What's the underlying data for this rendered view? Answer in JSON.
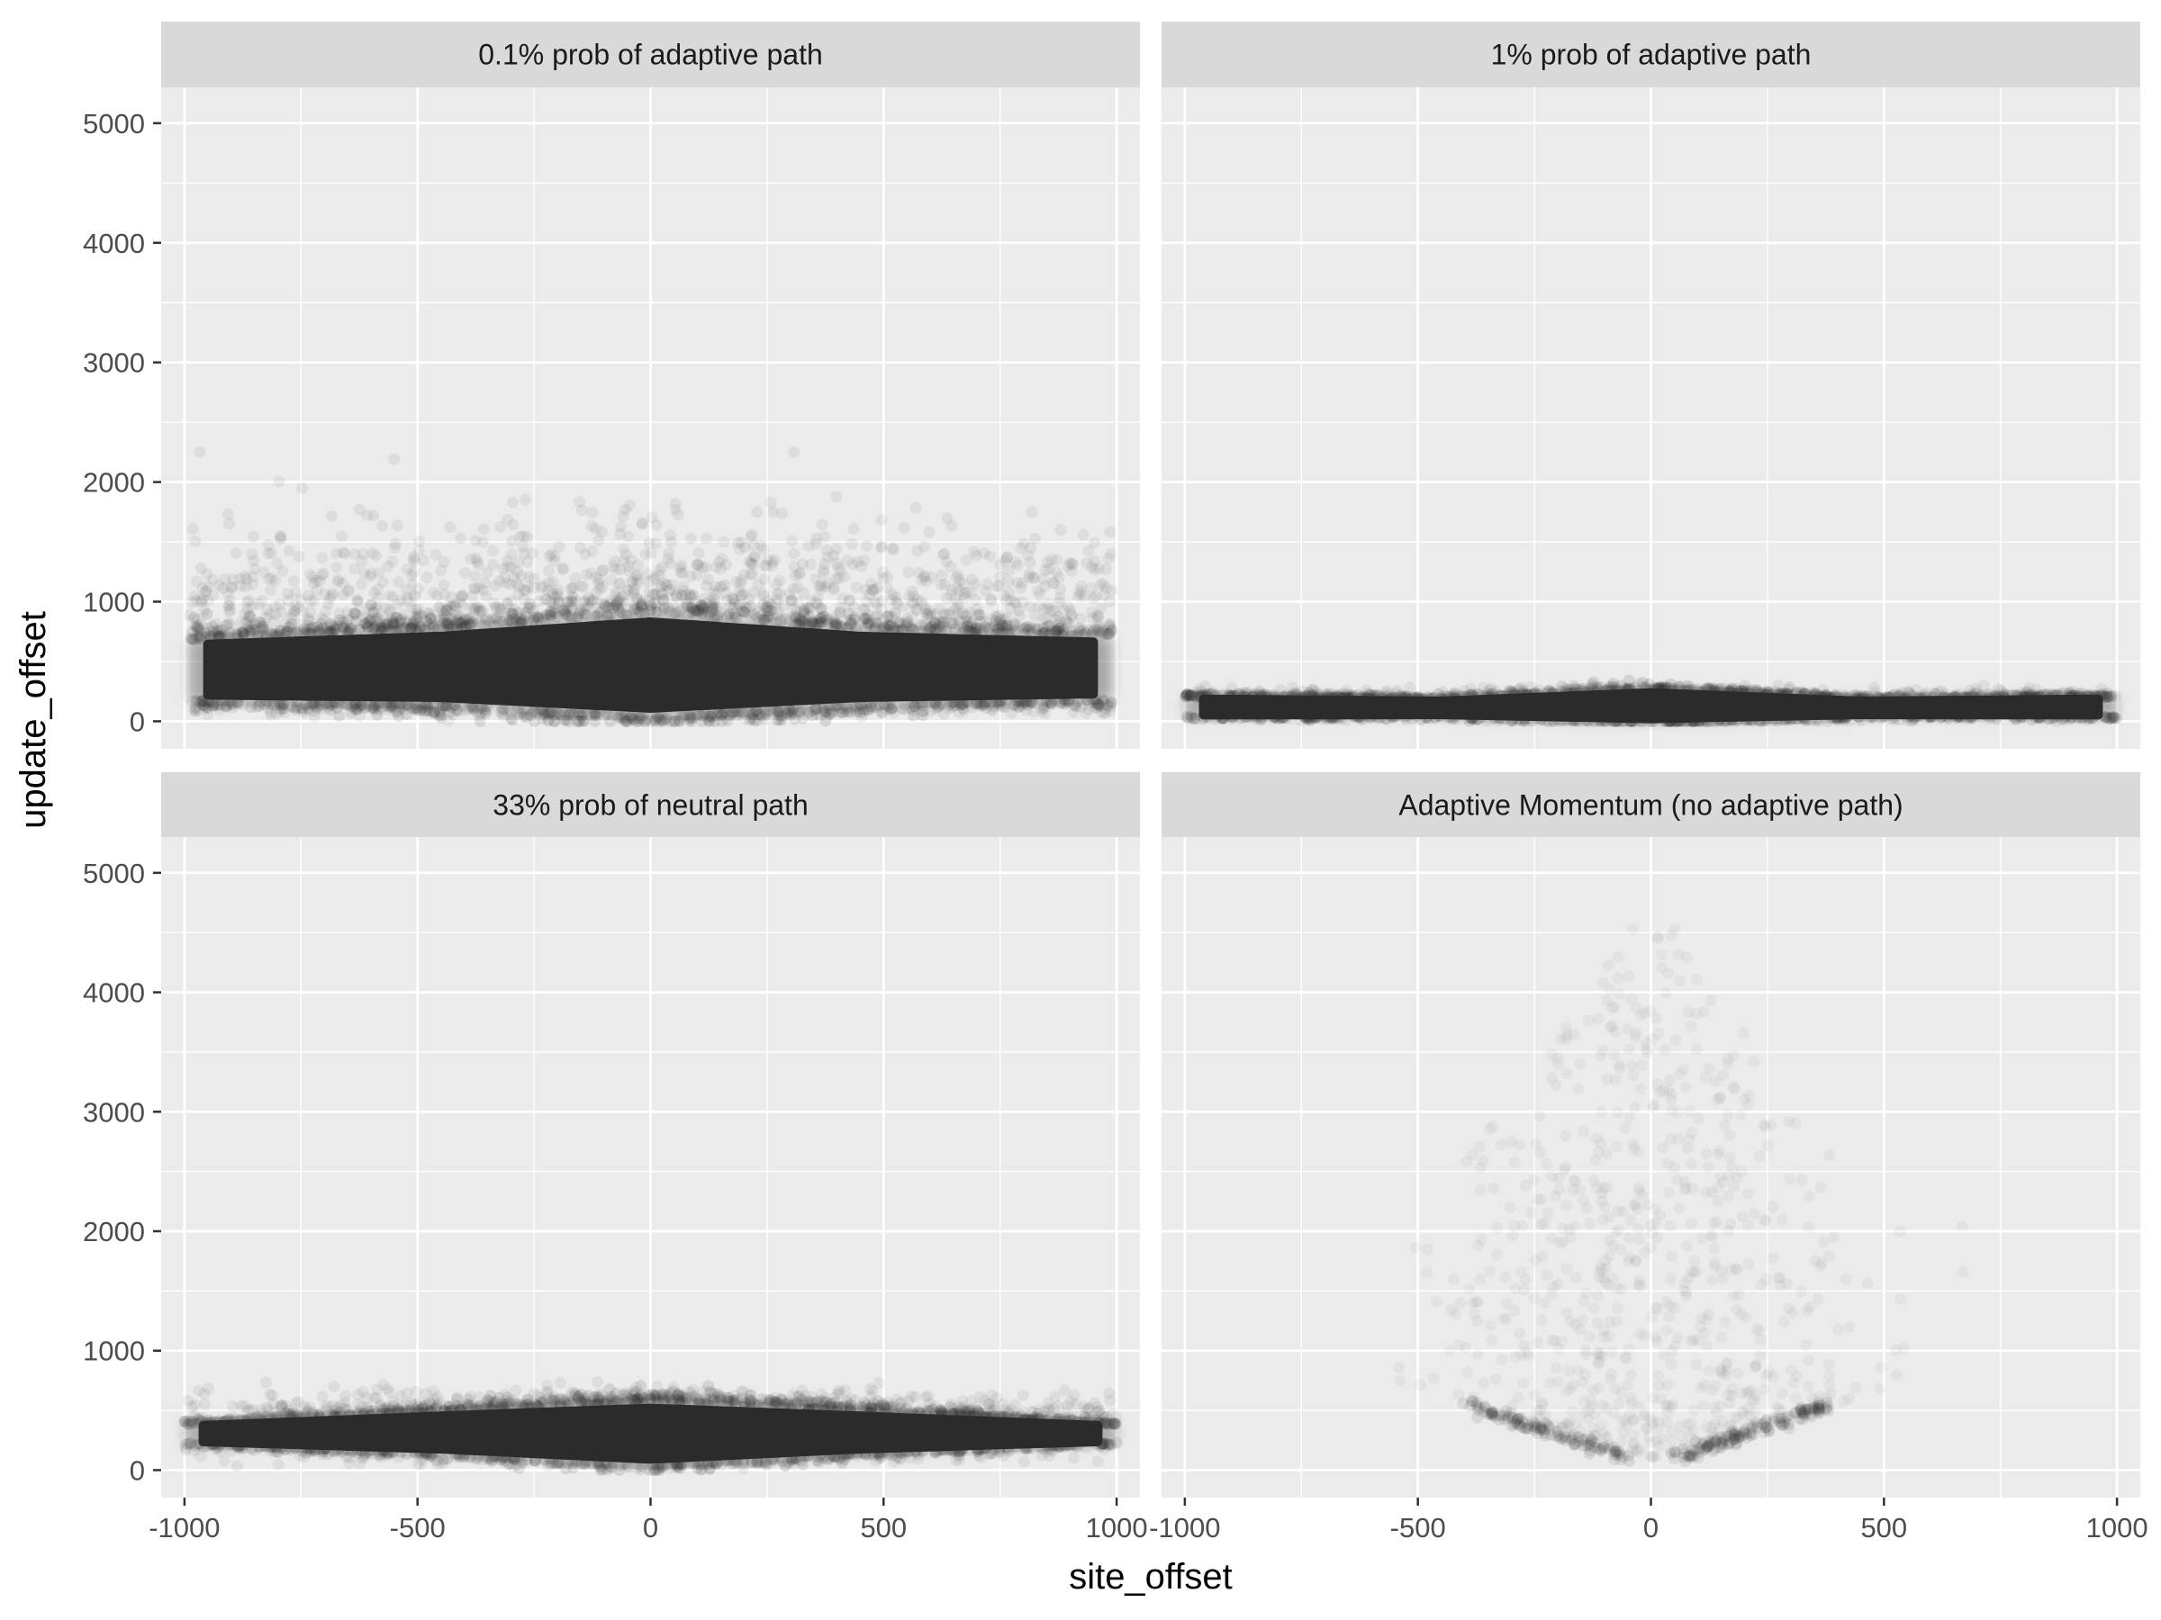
{
  "chart_data": {
    "type": "scatter",
    "xlabel": "site_offset",
    "ylabel": "update_offset",
    "xlim": [
      -1050,
      1050
    ],
    "ylim": [
      -230,
      5300
    ],
    "x_ticks": [
      -1000,
      -500,
      0,
      500,
      1000
    ],
    "y_ticks": [
      0,
      1000,
      2000,
      3000,
      4000,
      5000
    ],
    "grid": true,
    "colors": {
      "panel_bg": "#ebebeb",
      "strip_bg": "#d9d9d9",
      "grid": "#ffffff",
      "points": "#2b2b2b",
      "ticks": "#333333"
    },
    "facets": [
      {
        "title": "0.1% prob of adaptive path",
        "cloud": {
          "x_range": [
            -990,
            990
          ],
          "core_bottom": [
            180,
            150,
            40,
            150,
            190
          ],
          "core_top": [
            680,
            760,
            900,
            760,
            700
          ],
          "core_x": [
            -990,
            -450,
            0,
            450,
            990
          ],
          "scatter_max": 2250,
          "density": "high"
        }
      },
      {
        "title": "1% prob of adaptive path",
        "cloud": {
          "x_range": [
            -1000,
            1000
          ],
          "core_bottom": [
            40,
            45,
            0,
            45,
            40
          ],
          "core_top": [
            200,
            180,
            260,
            180,
            200
          ],
          "core_x": [
            -1000,
            -450,
            0,
            450,
            1000
          ],
          "scatter_max": 330,
          "density": "high"
        }
      },
      {
        "title": "33% prob of neutral path",
        "cloud": {
          "x_range": [
            -1000,
            1000
          ],
          "core_bottom": [
            230,
            150,
            50,
            150,
            230
          ],
          "core_top": [
            380,
            480,
            560,
            480,
            380
          ],
          "core_x": [
            -1000,
            -450,
            0,
            450,
            1000
          ],
          "scatter_max": 800,
          "density": "high"
        }
      },
      {
        "title": "Adaptive Momentum (no adaptive path)",
        "cloud": {
          "x_range": [
            -650,
            680
          ],
          "v_arms": [
            [
              -400,
              560
            ],
            [
              -50,
              100
            ],
            [
              50,
              100
            ],
            [
              380,
              540
            ]
          ],
          "scatter_max": 4850,
          "density": "sparse"
        }
      }
    ]
  }
}
